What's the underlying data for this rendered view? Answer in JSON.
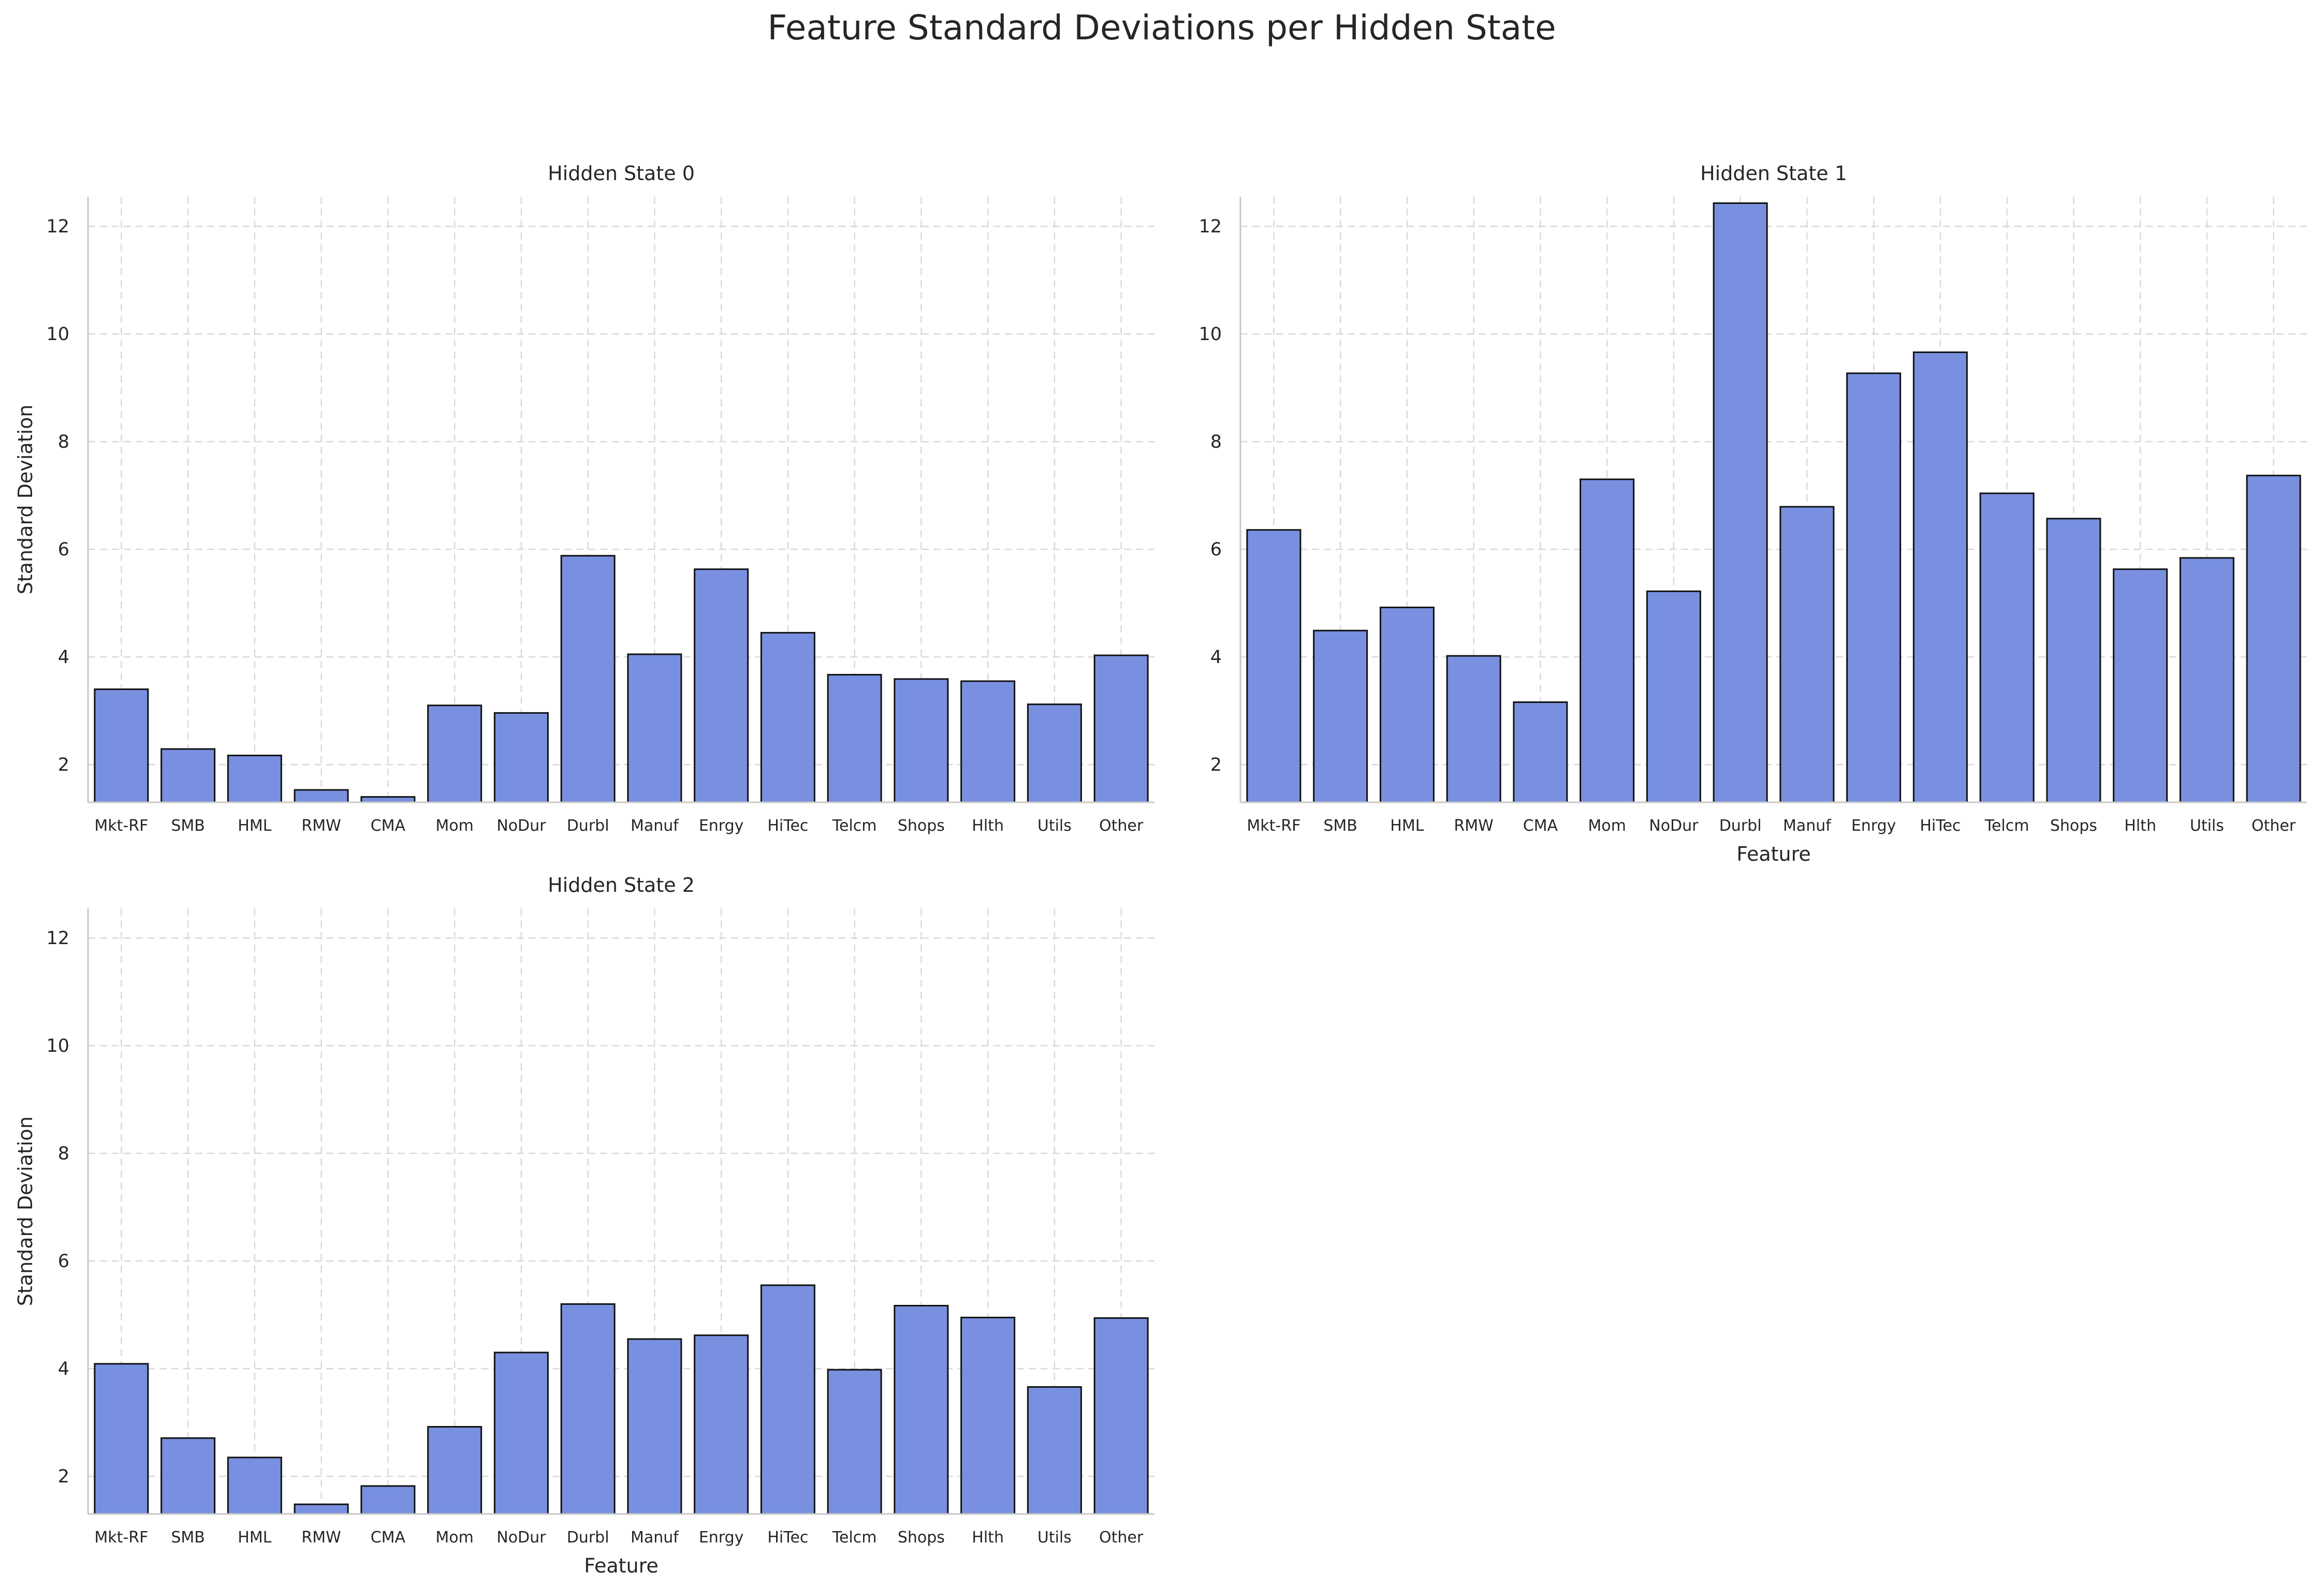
{
  "figure": {
    "title": "Feature Standard Deviations per Hidden State",
    "bar_color": "#7890df",
    "edge_color": "#111111",
    "grid": true
  },
  "chart_data": [
    {
      "type": "bar",
      "title": "Hidden State 0",
      "xlabel": "",
      "ylabel": "Standard Deviation",
      "ylim": [
        1.3,
        12.55
      ],
      "yticks": [
        2,
        4,
        6,
        8,
        10,
        12
      ],
      "categories": [
        "Mkt-RF",
        "SMB",
        "HML",
        "RMW",
        "CMA",
        "Mom",
        "NoDur",
        "Durbl",
        "Manuf",
        "Enrgy",
        "HiTec",
        "Telcm",
        "Shops",
        "Hlth",
        "Utils",
        "Other"
      ],
      "values": [
        3.4,
        2.29,
        2.17,
        1.53,
        1.4,
        3.1,
        2.96,
        5.88,
        4.05,
        5.63,
        4.45,
        3.67,
        3.59,
        3.55,
        3.12,
        4.03
      ]
    },
    {
      "type": "bar",
      "title": "Hidden State 1",
      "xlabel": "Feature",
      "ylabel": "",
      "ylim": [
        1.3,
        12.55
      ],
      "yticks": [
        2,
        4,
        6,
        8,
        10,
        12
      ],
      "categories": [
        "Mkt-RF",
        "SMB",
        "HML",
        "RMW",
        "CMA",
        "Mom",
        "NoDur",
        "Durbl",
        "Manuf",
        "Enrgy",
        "HiTec",
        "Telcm",
        "Shops",
        "Hlth",
        "Utils",
        "Other"
      ],
      "values": [
        6.36,
        4.49,
        4.92,
        4.02,
        3.16,
        7.3,
        5.22,
        12.43,
        6.79,
        9.27,
        9.66,
        7.04,
        6.57,
        5.63,
        5.84,
        7.37
      ]
    },
    {
      "type": "bar",
      "title": "Hidden State 2",
      "xlabel": "Feature",
      "ylabel": "Standard Deviation",
      "ylim": [
        1.3,
        12.55
      ],
      "yticks": [
        2,
        4,
        6,
        8,
        10,
        12
      ],
      "categories": [
        "Mkt-RF",
        "SMB",
        "HML",
        "RMW",
        "CMA",
        "Mom",
        "NoDur",
        "Durbl",
        "Manuf",
        "Enrgy",
        "HiTec",
        "Telcm",
        "Shops",
        "Hlth",
        "Utils",
        "Other"
      ],
      "values": [
        4.09,
        2.71,
        2.35,
        1.48,
        1.82,
        2.92,
        4.3,
        5.2,
        4.55,
        4.62,
        5.55,
        3.98,
        5.17,
        4.95,
        3.66,
        4.94
      ]
    }
  ]
}
